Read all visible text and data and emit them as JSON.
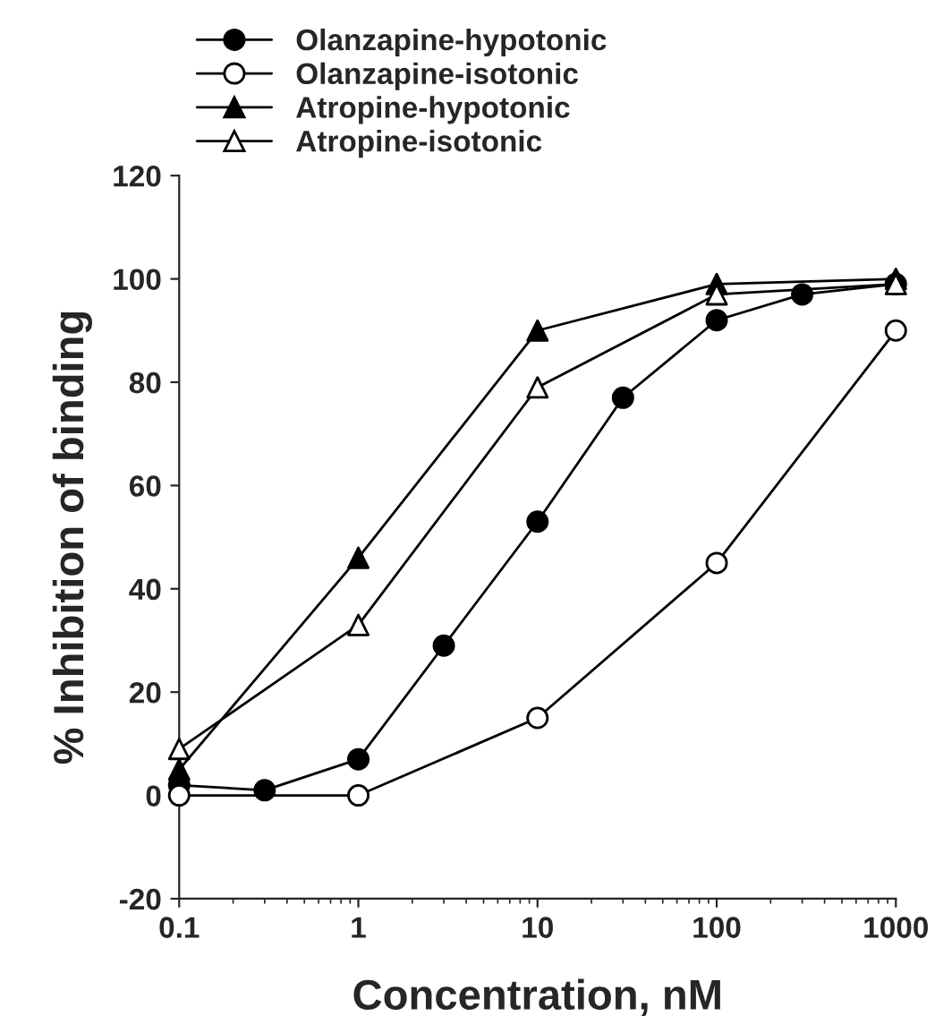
{
  "chart_data": {
    "type": "line",
    "xlabel": "Concentration, nM",
    "ylabel": "% Inhibition of binding",
    "log": "x",
    "xlim": [
      0.1,
      1000
    ],
    "xticks": [
      0.1,
      1,
      10,
      100,
      1000
    ],
    "ylim": [
      -20,
      120
    ],
    "yticks": [
      -20,
      0,
      20,
      40,
      60,
      80,
      100,
      120
    ],
    "grid": false,
    "legend": "top",
    "line_style": "solid",
    "series": [
      {
        "name": "Olanzapine-hypotonic",
        "color": "#000000",
        "marker": "circle",
        "colors": [
          "#000000",
          "#000000",
          "#000000",
          "#000000",
          "#000000",
          "#000000",
          "#000000",
          "#000000",
          "#000000"
        ],
        "x": [
          0.1,
          0.3,
          1,
          3,
          10,
          30,
          100,
          300,
          1000
        ],
        "values": [
          2,
          1,
          7,
          29,
          53,
          77,
          92,
          97,
          99
        ]
      },
      {
        "name": "Olanzapine-isotonic",
        "color": "#000000",
        "marker": "circle",
        "colors": [
          "#ffffff",
          "#ffffff",
          "#ffffff",
          "#ffffff",
          "#ffffff"
        ],
        "x": [
          0.1,
          1,
          10,
          100,
          1000
        ],
        "values": [
          0,
          0,
          15,
          45,
          90
        ]
      },
      {
        "name": "Atropine-hypotonic",
        "color": "#000000",
        "marker": "triangle",
        "colors": [
          "#000000",
          "#000000",
          "#000000",
          "#000000",
          "#000000"
        ],
        "x": [
          0.1,
          1,
          10,
          100,
          1000
        ],
        "values": [
          5,
          46,
          90,
          99,
          100
        ]
      },
      {
        "name": "Atropine-isotonic",
        "color": "#000000",
        "marker": "triangle",
        "colors": [
          "#ffffff",
          "#ffffff",
          "#ffffff",
          "#ffffff",
          "#ffffff"
        ],
        "x": [
          0.1,
          1,
          10,
          100,
          1000
        ],
        "values": [
          9,
          33,
          79,
          97,
          99
        ]
      }
    ]
  }
}
